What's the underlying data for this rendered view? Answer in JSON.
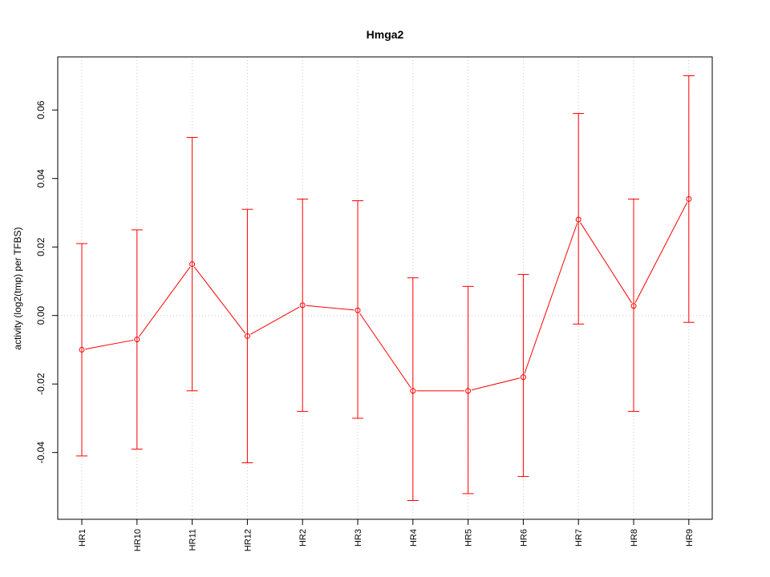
{
  "chart_data": {
    "type": "line",
    "title": "Hmga2",
    "xlabel": "",
    "ylabel": "activity (log2(tmp) per TFBS)",
    "categories": [
      "HR1",
      "HR10",
      "HR11",
      "HR12",
      "HR2",
      "HR3",
      "HR4",
      "HR5",
      "HR6",
      "HR7",
      "HR8",
      "HR9"
    ],
    "series": [
      {
        "values": [
          -0.01,
          -0.007,
          0.015,
          -0.006,
          0.003,
          0.0015,
          -0.022,
          -0.022,
          -0.018,
          0.028,
          0.0028,
          0.034
        ],
        "upper": [
          0.021,
          0.025,
          0.052,
          0.031,
          0.034,
          0.0335,
          0.011,
          0.0085,
          0.012,
          0.059,
          0.034,
          0.07
        ],
        "lower": [
          -0.041,
          -0.039,
          -0.022,
          -0.043,
          -0.028,
          -0.03,
          -0.054,
          -0.052,
          -0.047,
          -0.0025,
          -0.028,
          -0.002
        ]
      }
    ],
    "yticks": [
      -0.04,
      -0.02,
      0.0,
      0.02,
      0.04,
      0.06
    ],
    "ytick_labels": [
      "-0.04",
      "-0.02",
      "0.00",
      "0.02",
      "0.04",
      "0.06"
    ],
    "ylim": [
      -0.0595,
      0.0755
    ],
    "grid": true,
    "series_color": "#ff0000",
    "grid_color": "#c8c8c8"
  }
}
